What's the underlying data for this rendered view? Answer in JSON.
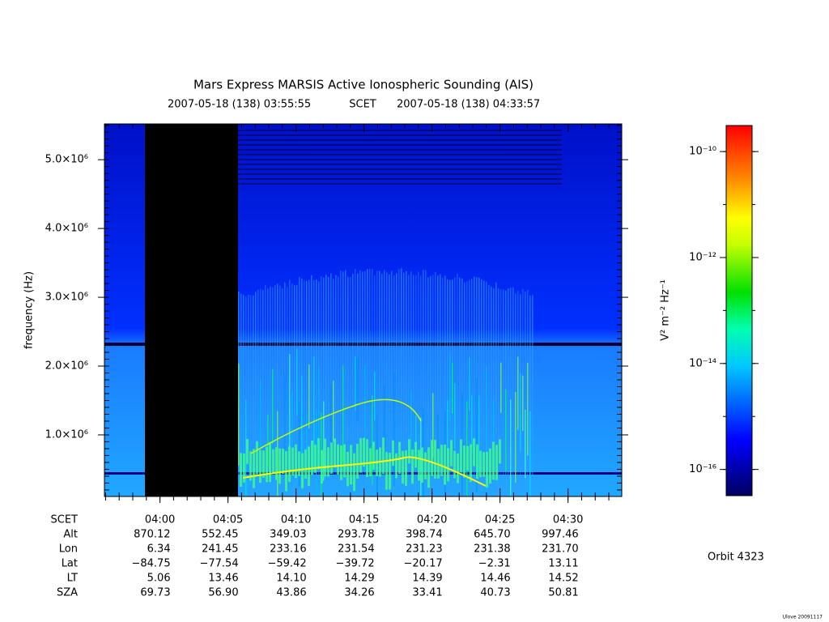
{
  "chart_data": {
    "type": "spectrogram",
    "title": "Mars Express MARSIS Active Ionospheric Sounding (AIS)",
    "start_time": "2007-05-18 (138) 03:55:55",
    "time_label": "SCET",
    "end_time": "2007-05-18 (138) 04:33:57",
    "ylabel": "frequency (Hz)",
    "xlim": [
      235.917,
      273.95
    ],
    "xticks": [
      {
        "value": 240,
        "label": "04:00"
      },
      {
        "value": 245,
        "label": "04:05"
      },
      {
        "value": 250,
        "label": "04:10"
      },
      {
        "value": 255,
        "label": "04:15"
      },
      {
        "value": 260,
        "label": "04:20"
      },
      {
        "value": 265,
        "label": "04:25"
      },
      {
        "value": 270,
        "label": "04:30"
      }
    ],
    "ylim": [
      105000,
      5520000
    ],
    "yticks": [
      {
        "value": 1000000,
        "label": "1.0×10⁶"
      },
      {
        "value": 2000000,
        "label": "2.0×10⁶"
      },
      {
        "value": 3000000,
        "label": "3.0×10⁶"
      },
      {
        "value": 4000000,
        "label": "4.0×10⁶"
      },
      {
        "value": 5000000,
        "label": "5.0×10⁶"
      }
    ],
    "colorbar": {
      "label": "V² m⁻² Hz⁻¹",
      "log_scale": true,
      "lim": [
        3.2e-17,
        3.1e-10
      ],
      "ticks": [
        {
          "value": 1e-10,
          "label": "10⁻¹⁰"
        },
        {
          "value": 1e-12,
          "label": "10⁻¹²"
        },
        {
          "value": 1e-14,
          "label": "10⁻¹⁴"
        },
        {
          "value": 1e-16,
          "label": "10⁻¹⁶"
        }
      ]
    },
    "ephemeris": {
      "row_names": [
        "SCET",
        "Alt",
        "Lon",
        "Lat",
        "LT",
        "SZA"
      ],
      "rows": [
        [
          870.12,
          552.45,
          349.03,
          293.78,
          398.74,
          645.7,
          997.46
        ],
        [
          6.34,
          241.45,
          233.16,
          231.54,
          231.23,
          231.38,
          231.7
        ],
        [
          -84.75,
          -77.54,
          -59.42,
          -39.72,
          -20.17,
          -2.31,
          13.11
        ],
        [
          5.06,
          13.46,
          14.1,
          14.29,
          14.39,
          14.46,
          14.52
        ],
        [
          69.73,
          56.9,
          43.86,
          34.26,
          33.41,
          40.73,
          50.81
        ]
      ]
    },
    "orbit": "Orbit 4323",
    "credit": "Ulove 20091117"
  }
}
